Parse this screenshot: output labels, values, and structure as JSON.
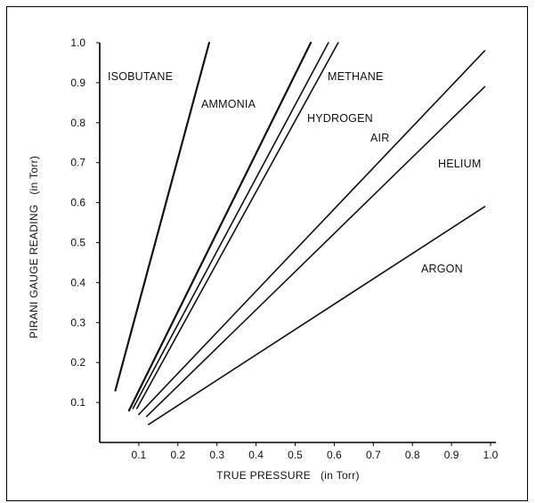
{
  "chart_data": {
    "type": "line",
    "xlabel": "TRUE PRESSURE   (in Torr)",
    "ylabel": "PIRANI GAUGE READING   (in Torr)",
    "xlim": [
      0,
      1.0
    ],
    "ylim": [
      0,
      1.0
    ],
    "xticks": [
      "0.1",
      "0.2",
      "0.3",
      "0.4",
      "0.5",
      "0.6",
      "0.7",
      "0.8",
      "0.9",
      "1.0"
    ],
    "yticks": [
      "0.1",
      "0.2",
      "0.3",
      "0.4",
      "0.5",
      "0.6",
      "0.7",
      "0.8",
      "0.9",
      "1.0"
    ],
    "grid": false,
    "legend": "none (labels placed next to lines)",
    "series": [
      {
        "name": "ISOBUTANE",
        "x": [
          0.04,
          0.28
        ],
        "y": [
          0.13,
          1.0
        ]
      },
      {
        "name": "AMMONIA",
        "x": [
          0.075,
          0.54
        ],
        "y": [
          0.08,
          1.0
        ]
      },
      {
        "name": "METHANE",
        "x": [
          0.085,
          0.585
        ],
        "y": [
          0.085,
          1.0
        ]
      },
      {
        "name": "HYDROGEN",
        "x": [
          0.095,
          0.61
        ],
        "y": [
          0.085,
          1.0
        ]
      },
      {
        "name": "AIR",
        "x": [
          0.1,
          0.985
        ],
        "y": [
          0.07,
          0.98
        ]
      },
      {
        "name": "HELIUM",
        "x": [
          0.12,
          0.985
        ],
        "y": [
          0.065,
          0.89
        ]
      },
      {
        "name": "ARGON",
        "x": [
          0.125,
          0.985
        ],
        "y": [
          0.045,
          0.59
        ]
      }
    ]
  }
}
